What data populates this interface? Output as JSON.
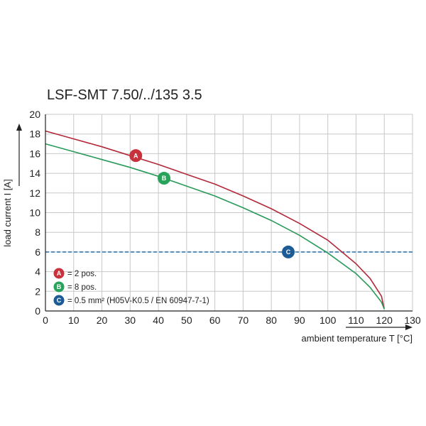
{
  "chart_data": {
    "type": "line",
    "title": "LSF-SMT 7.50/../135 3.5",
    "xlabel": "ambient temperature T [°C]",
    "ylabel": "load current I [A]",
    "xlim": [
      0,
      130
    ],
    "ylim": [
      0,
      20
    ],
    "xticks": [
      "0",
      "10",
      "20",
      "30",
      "40",
      "50",
      "60",
      "70",
      "80",
      "90",
      "100",
      "110",
      "120",
      "130"
    ],
    "yticks": [
      "0",
      "2",
      "4",
      "6",
      "8",
      "10",
      "12",
      "14",
      "16",
      "18",
      "20"
    ],
    "grid": true,
    "series": [
      {
        "marker": "A",
        "color": "#b22a3a",
        "x": [
          0,
          10,
          20,
          30,
          40,
          50,
          60,
          70,
          80,
          90,
          100,
          110,
          115,
          119,
          120
        ],
        "y": [
          18.3,
          17.5,
          16.7,
          15.8,
          14.9,
          13.9,
          12.9,
          11.7,
          10.4,
          8.9,
          7.2,
          4.8,
          3.3,
          1.5,
          0.2
        ]
      },
      {
        "marker": "B",
        "color": "#2a9a5a",
        "x": [
          0,
          10,
          20,
          30,
          40,
          50,
          60,
          70,
          80,
          90,
          100,
          110,
          115,
          119,
          120
        ],
        "y": [
          17.0,
          16.2,
          15.4,
          14.6,
          13.7,
          12.7,
          11.7,
          10.5,
          9.2,
          7.7,
          5.9,
          3.8,
          2.4,
          0.9,
          0.2
        ]
      }
    ],
    "reference_line": {
      "marker": "C",
      "y": 6,
      "color": "#1b5e9a",
      "style": "dashed"
    },
    "markers": [
      {
        "label": "A",
        "x": 32,
        "y": 15.8,
        "color": "#c8323c"
      },
      {
        "label": "B",
        "x": 42,
        "y": 13.5,
        "color": "#27a35a"
      },
      {
        "label": "C",
        "x": 86,
        "y": 6,
        "color": "#1c5b96"
      }
    ],
    "legend": {
      "placement": "bottom-left",
      "items": [
        {
          "label": "A",
          "color": "#c8323c",
          "text": "= 2 pos."
        },
        {
          "label": "B",
          "color": "#27a35a",
          "text": "= 8 pos."
        },
        {
          "label": "C",
          "color": "#1c5b96",
          "text": "= 0.5 mm² (H05V-K0.5 / EN 60947-7-1)"
        }
      ]
    },
    "colors": {
      "grid": "#c8c8c8",
      "axis": "#222222"
    }
  }
}
